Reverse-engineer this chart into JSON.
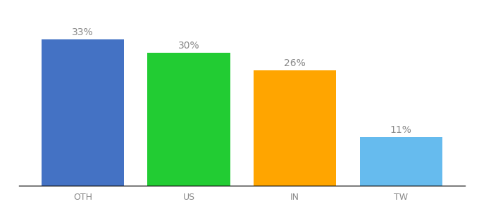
{
  "categories": [
    "OTH",
    "US",
    "IN",
    "TW"
  ],
  "values": [
    33,
    30,
    26,
    11
  ],
  "labels": [
    "33%",
    "30%",
    "26%",
    "11%"
  ],
  "bar_colors": [
    "#4472C4",
    "#22CC33",
    "#FFA500",
    "#66BBEE"
  ],
  "background_color": "#ffffff",
  "ylim": [
    0,
    38
  ],
  "label_fontsize": 10,
  "tick_fontsize": 9,
  "label_color": "#888888",
  "tick_color": "#888888",
  "bar_width": 0.78
}
